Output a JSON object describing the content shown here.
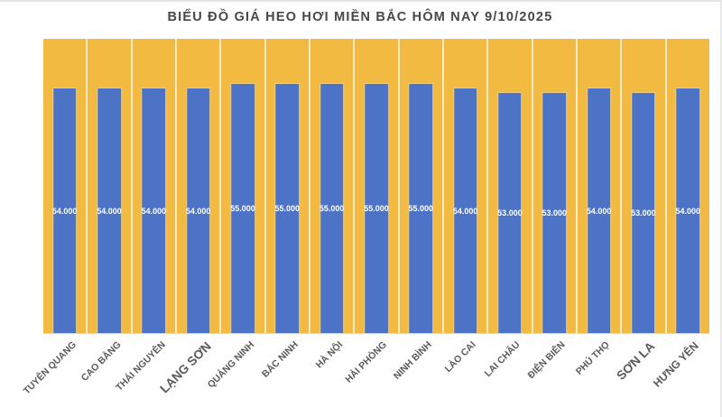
{
  "title": "BIỂU ĐỒ GIÁ HEO HƠI MIỀN BẮC HÔM NAY 9/10/2025",
  "colors": {
    "plot_background": "#F2BA41",
    "bar": "#4C73C5",
    "value_label": "#FFFFFF",
    "category_label": "#595959",
    "title": "#474747",
    "gridline": "rgba(255,255,255,0.7)",
    "axis_line": "#D9D9D9"
  },
  "chart_data": {
    "type": "bar",
    "title": "BIỂU ĐỒ GIÁ HEO HƠI MIỀN BẮC HÔM NAY 9/10/2025",
    "categories": [
      "TUYÊN QUANG",
      "CAO BẰNG",
      "THÁI NGUYÊN",
      "LẠNG SƠN",
      "QUẢNG NINH",
      "BẮC NINH",
      "HÀ NỘI",
      "HẢI PHÒNG",
      "NINH BÌNH",
      "LÀO CAI",
      "LAI CHÂU",
      "ĐIỆN BIÊN",
      "PHÚ THỌ",
      "SƠN LA",
      "HƯNG YÊN"
    ],
    "values": [
      54000,
      54000,
      54000,
      54000,
      55000,
      55000,
      55000,
      55000,
      55000,
      54000,
      53000,
      53000,
      54000,
      53000,
      54000
    ],
    "value_labels": [
      "54.000",
      "54.000",
      "54.000",
      "54.000",
      "55.000",
      "55.000",
      "55.000",
      "55.000",
      "55.000",
      "54.000",
      "53.000",
      "53.000",
      "54.000",
      "53.000",
      "54.000"
    ],
    "xlabel": "",
    "ylabel": "",
    "ylim": [
      0,
      65000
    ],
    "legend": "none",
    "grid": "vertical-column-separators",
    "category_label_rotation_deg": -45,
    "category_label_font_scale": [
      1,
      1,
      1,
      1.3,
      1,
      1,
      1,
      1,
      1,
      1,
      1,
      1,
      1,
      1.3,
      1.15
    ]
  }
}
